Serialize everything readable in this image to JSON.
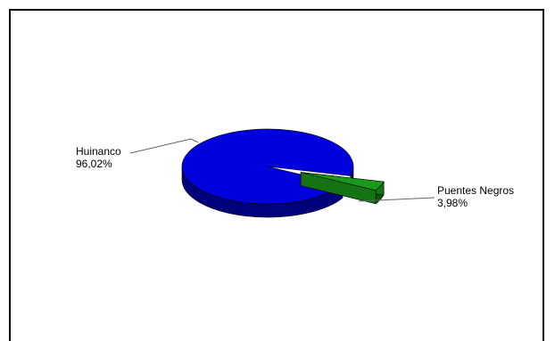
{
  "chart_data": {
    "type": "pie",
    "title": "",
    "three_d": true,
    "legend": "none",
    "slices": [
      {
        "label": "Huinanco",
        "value": 96.02,
        "value_label": "96,02%",
        "color": "#0000dd"
      },
      {
        "label": "Puentes Negros",
        "value": 3.98,
        "value_label": "3,98%",
        "color": "#1a9a1a"
      }
    ]
  }
}
